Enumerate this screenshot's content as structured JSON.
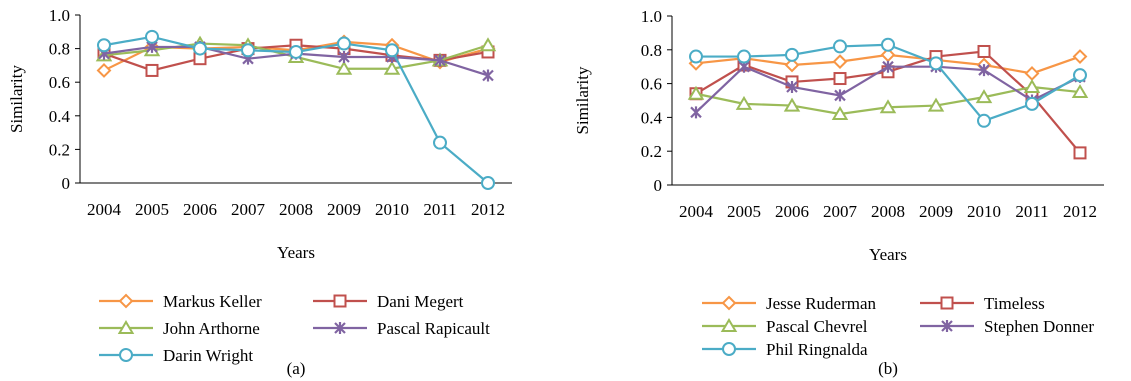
{
  "chart_data": [
    {
      "type": "line",
      "caption": "(a)",
      "xlabel": "Years",
      "ylabel": "Similarity",
      "ylim": [
        0,
        1.0
      ],
      "yticks": [
        "0",
        "0.2",
        "0.4",
        "0.6",
        "0.8",
        "1.0"
      ],
      "categories": [
        "2004",
        "2005",
        "2006",
        "2007",
        "2008",
        "2009",
        "2010",
        "2011",
        "2012"
      ],
      "legend_placement": "bottom",
      "series": [
        {
          "name": "Markus Keller",
          "color": "#f79646",
          "marker": "diamond",
          "values": [
            0.67,
            0.81,
            0.8,
            0.81,
            0.79,
            0.84,
            0.82,
            0.72,
            0.8
          ]
        },
        {
          "name": "Dani Megert",
          "color": "#c0504d",
          "marker": "square",
          "values": [
            0.77,
            0.67,
            0.74,
            0.8,
            0.82,
            0.8,
            0.76,
            0.73,
            0.78
          ]
        },
        {
          "name": "John Arthorne",
          "color": "#9bbb59",
          "marker": "triangle",
          "values": [
            0.76,
            0.79,
            0.83,
            0.82,
            0.75,
            0.68,
            0.68,
            0.73,
            0.82
          ]
        },
        {
          "name": "Pascal Rapicault",
          "color": "#8064a2",
          "marker": "star",
          "values": [
            0.77,
            0.81,
            0.81,
            0.74,
            0.77,
            0.75,
            0.75,
            0.73,
            0.64
          ]
        },
        {
          "name": "Darin Wright",
          "color": "#4bacc6",
          "marker": "circle",
          "values": [
            0.82,
            0.87,
            0.8,
            0.79,
            0.78,
            0.83,
            0.79,
            0.24,
            0.0
          ]
        }
      ]
    },
    {
      "type": "line",
      "caption": "(b)",
      "xlabel": "Years",
      "ylabel": "Similarity",
      "ylim": [
        0,
        1.0
      ],
      "yticks": [
        "0",
        "0.2",
        "0.4",
        "0.6",
        "0.8",
        "1.0"
      ],
      "categories": [
        "2004",
        "2005",
        "2006",
        "2007",
        "2008",
        "2009",
        "2010",
        "2011",
        "2012"
      ],
      "legend_placement": "bottom",
      "series": [
        {
          "name": "Jesse Ruderman",
          "color": "#f79646",
          "marker": "diamond",
          "values": [
            0.72,
            0.75,
            0.71,
            0.73,
            0.77,
            0.74,
            0.71,
            0.66,
            0.76
          ]
        },
        {
          "name": "Timeless",
          "color": "#c0504d",
          "marker": "square",
          "values": [
            0.54,
            0.71,
            0.61,
            0.63,
            0.67,
            0.76,
            0.79,
            0.53,
            0.19
          ]
        },
        {
          "name": "Pascal Chevrel",
          "color": "#9bbb59",
          "marker": "triangle",
          "values": [
            0.54,
            0.48,
            0.47,
            0.42,
            0.46,
            0.47,
            0.52,
            0.58,
            0.55
          ]
        },
        {
          "name": "Stephen Donner",
          "color": "#8064a2",
          "marker": "star",
          "values": [
            0.43,
            0.7,
            0.58,
            0.53,
            0.7,
            0.7,
            0.68,
            0.5,
            0.64
          ]
        },
        {
          "name": "Phil Ringnalda",
          "color": "#4bacc6",
          "marker": "circle",
          "values": [
            0.76,
            0.76,
            0.77,
            0.82,
            0.83,
            0.72,
            0.38,
            0.48,
            0.65
          ]
        }
      ]
    }
  ]
}
